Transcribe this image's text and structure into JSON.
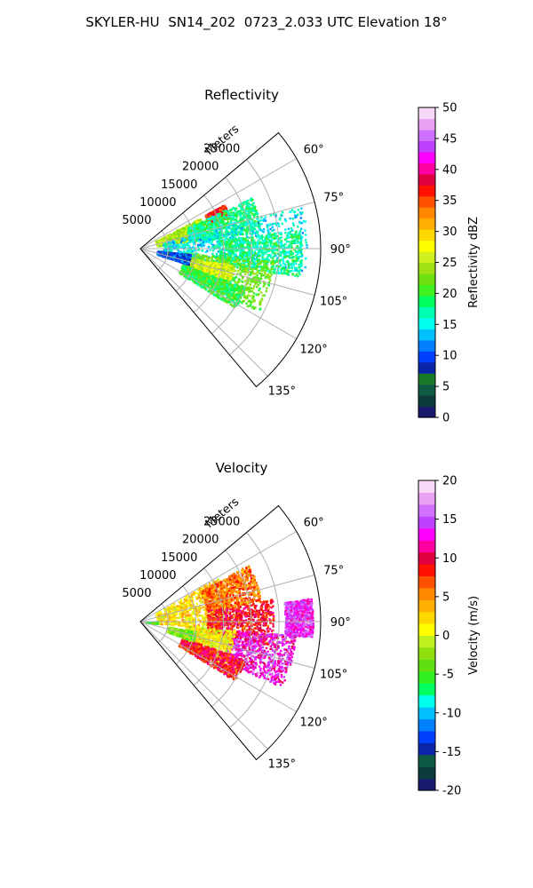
{
  "figure": {
    "suptitle": "SKYLER-HU  SN14_202  0723_2.033 UTC Elevation 18°"
  },
  "chart_data": [
    {
      "type": "polar-sector",
      "title": "Reflectivity",
      "range_label": "Meters",
      "range_max": 32500,
      "range_ticks": [
        5000,
        10000,
        15000,
        20000,
        25000
      ],
      "range_tick_labels": [
        "5000",
        "10000",
        "15000",
        "20000",
        "25000"
      ],
      "azimuth_range": [
        50,
        140
      ],
      "azimuth_ticks": [
        60,
        75,
        90,
        105,
        120,
        135
      ],
      "azimuth_tick_labels": [
        "60°",
        "75°",
        "90°",
        "105°",
        "120°",
        "135°"
      ],
      "grid": true,
      "colorbar": {
        "label": "Reflectivity dBZ",
        "range": [
          0,
          50
        ],
        "ticks": [
          0,
          5,
          10,
          15,
          20,
          25,
          30,
          35,
          40,
          45,
          50
        ],
        "colors": [
          "#1a1a6e",
          "#0d3b3b",
          "#0f5a45",
          "#1a7a2a",
          "#0a25a8",
          "#0040ff",
          "#0080ff",
          "#00c0ff",
          "#00ffee",
          "#00ffb0",
          "#00ff60",
          "#40f020",
          "#70e010",
          "#a0e010",
          "#d0f020",
          "#ffff00",
          "#ffd800",
          "#ffb000",
          "#ff8800",
          "#ff5000",
          "#ff1000",
          "#e00040",
          "#ff00a0",
          "#ff00ff",
          "#c040ff",
          "#d070ff",
          "#e8a0f0",
          "#f8d8f8"
        ]
      },
      "echo_regions": [
        {
          "az": [
            62,
            70
          ],
          "range": [
            13000,
            17000
          ],
          "value": 36
        },
        {
          "az": [
            62,
            80
          ],
          "range": [
            3000,
            12000
          ],
          "value": 25
        },
        {
          "az": [
            65,
            82
          ],
          "range": [
            9000,
            22000
          ],
          "value": 18
        },
        {
          "az": [
            75,
            100
          ],
          "range": [
            4000,
            30000
          ],
          "value": 15
        },
        {
          "az": [
            83,
            100
          ],
          "range": [
            14000,
            29000
          ],
          "value": 18
        },
        {
          "az": [
            95,
            118
          ],
          "range": [
            8000,
            24000
          ],
          "value": 22
        },
        {
          "az": [
            100,
            115
          ],
          "range": [
            9000,
            17000
          ],
          "value": 26
        },
        {
          "az": [
            110,
            122
          ],
          "range": [
            8000,
            20000
          ],
          "value": 20
        },
        {
          "az": [
            96,
            108
          ],
          "range": [
            3000,
            9000
          ],
          "value": 10
        }
      ]
    },
    {
      "type": "polar-sector",
      "title": "Velocity",
      "range_label": "Meters",
      "range_max": 32500,
      "range_ticks": [
        5000,
        10000,
        15000,
        20000,
        25000
      ],
      "range_tick_labels": [
        "5000",
        "10000",
        "15000",
        "20000",
        "25000"
      ],
      "azimuth_range": [
        50,
        140
      ],
      "azimuth_ticks": [
        60,
        75,
        90,
        105,
        120,
        135
      ],
      "azimuth_tick_labels": [
        "60°",
        "75°",
        "90°",
        "105°",
        "120°",
        "135°"
      ],
      "grid": true,
      "colorbar": {
        "label": "Velocity (m/s)",
        "range": [
          -20,
          20
        ],
        "ticks": [
          -20,
          -15,
          -10,
          -5,
          0,
          5,
          10,
          15,
          20
        ],
        "colors": [
          "#1a1a6e",
          "#0d3b3b",
          "#0f5a45",
          "#0a25a8",
          "#0040ff",
          "#0080ff",
          "#00c0ff",
          "#00ffee",
          "#00ff60",
          "#30f020",
          "#60e010",
          "#90e010",
          "#c0f020",
          "#ffff00",
          "#ffd800",
          "#ffb000",
          "#ff8800",
          "#ff5000",
          "#ff1000",
          "#e00040",
          "#ff00a0",
          "#ff00ff",
          "#c040ff",
          "#d070ff",
          "#e8a0f0",
          "#f8d8f8"
        ]
      },
      "echo_regions": [
        {
          "az": [
            60,
            95
          ],
          "range": [
            3000,
            16000
          ],
          "value": 2
        },
        {
          "az": [
            62,
            80
          ],
          "range": [
            12000,
            22000
          ],
          "value": 6
        },
        {
          "az": [
            80,
            100
          ],
          "range": [
            12000,
            24000
          ],
          "value": 9
        },
        {
          "az": [
            95,
            115
          ],
          "range": [
            16000,
            28000
          ],
          "value": 13
        },
        {
          "az": [
            82,
            95
          ],
          "range": [
            26000,
            31000
          ],
          "value": 14
        },
        {
          "az": [
            95,
            118
          ],
          "range": [
            8000,
            17000
          ],
          "value": 1
        },
        {
          "az": [
            110,
            122
          ],
          "range": [
            8000,
            20000
          ],
          "value": 9
        },
        {
          "az": [
            100,
            110
          ],
          "range": [
            5000,
            10000
          ],
          "value": -3
        },
        {
          "az": [
            88,
            95
          ],
          "range": [
            1000,
            3000
          ],
          "value": -4
        }
      ]
    }
  ]
}
